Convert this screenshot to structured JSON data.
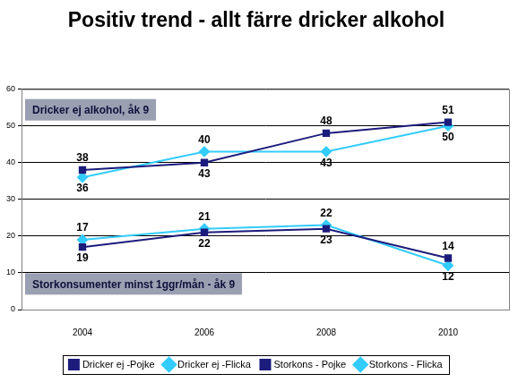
{
  "chart_data": {
    "type": "line",
    "title": "Positiv trend - allt färre dricker alkohol",
    "categories": [
      "2004",
      "2006",
      "2008",
      "2010"
    ],
    "series": [
      {
        "name": "Dricker ej -Pojke",
        "color": "#1c1c7c",
        "marker": "square",
        "values": [
          38,
          40,
          48,
          51
        ]
      },
      {
        "name": "Dricker ej -Flicka",
        "color": "#33ccff",
        "marker": "diamond",
        "values": [
          36,
          43,
          43,
          50
        ]
      },
      {
        "name": "Storkons - Pojke",
        "color": "#1c1c7c",
        "marker": "square",
        "values": [
          17,
          21,
          22,
          14
        ]
      },
      {
        "name": "Storkons - Flicka",
        "color": "#33ccff",
        "marker": "diamond",
        "values": [
          19,
          22,
          23,
          12
        ]
      }
    ],
    "ylim": [
      0,
      60
    ],
    "yticks": [
      0,
      10,
      20,
      30,
      40,
      50,
      60
    ],
    "grid": true,
    "legend": "bottom",
    "data_labels": true,
    "annotations": [
      "Dricker ej alkohol, åk 9",
      "Storkonsumenter minst 1ggr/mån - åk 9"
    ]
  }
}
